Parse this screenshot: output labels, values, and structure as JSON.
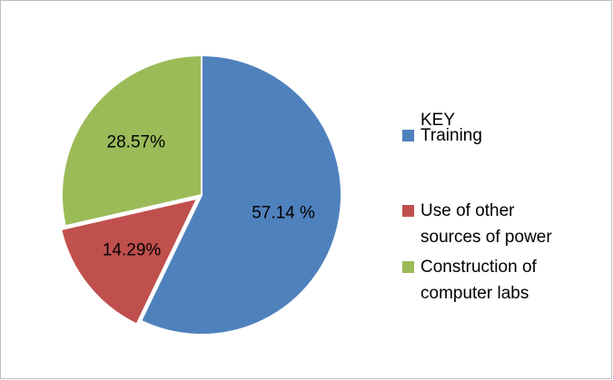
{
  "chart_data": {
    "type": "pie",
    "legend_title": "KEY",
    "categories": [
      "Training",
      "Use of other sources of power",
      "Construction of computer labs"
    ],
    "values": [
      57.14,
      14.29,
      28.57
    ],
    "value_labels": [
      "57.14 %",
      "14.29%",
      "28.57%"
    ],
    "colors": [
      "#4f81bd",
      "#c0504d",
      "#9bbb59"
    ],
    "legend": "right"
  }
}
